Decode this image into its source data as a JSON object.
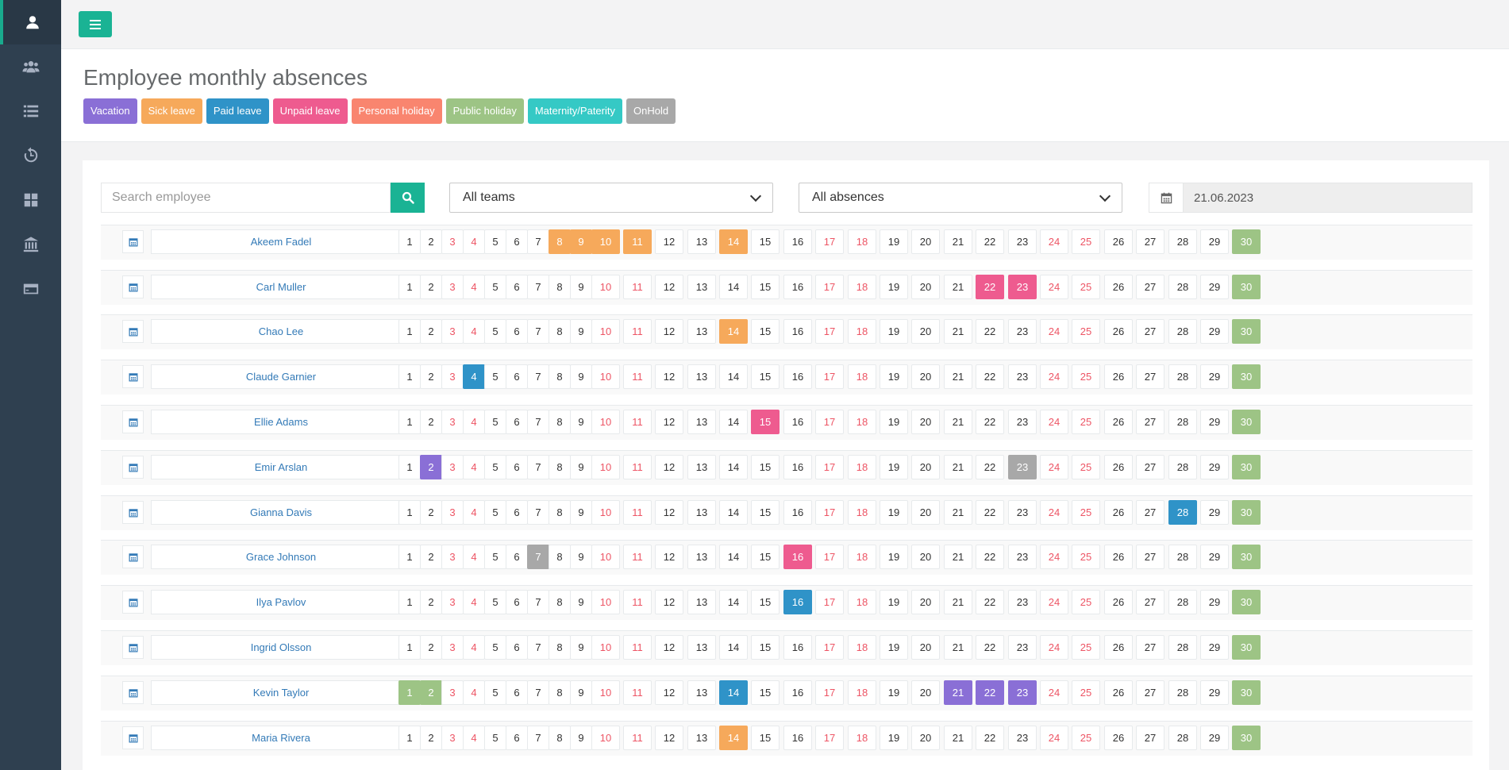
{
  "colors": {
    "vacation": "#8a6fd6",
    "sick": "#f6a95b",
    "paid": "#2f93c8",
    "unpaid": "#ee5b8f",
    "personal": "#f9856f",
    "public": "#9dc485",
    "maternity": "#35c9c5",
    "onhold": "#a8a8a8"
  },
  "sidebar": {
    "items": [
      {
        "icon": "user-icon",
        "active": true
      },
      {
        "icon": "users-icon",
        "active": false
      },
      {
        "icon": "list-icon",
        "active": false
      },
      {
        "icon": "history-icon",
        "active": false
      },
      {
        "icon": "dashboard-icon",
        "active": false
      },
      {
        "icon": "bank-icon",
        "active": false
      },
      {
        "icon": "credit-card-icon",
        "active": false
      }
    ]
  },
  "page": {
    "title": "Employee monthly absences"
  },
  "legend": [
    {
      "label": "Vacation",
      "key": "vacation"
    },
    {
      "label": "Sick leave",
      "key": "sick"
    },
    {
      "label": "Paid leave",
      "key": "paid"
    },
    {
      "label": "Unpaid leave",
      "key": "unpaid"
    },
    {
      "label": "Personal holiday",
      "key": "personal"
    },
    {
      "label": "Public holiday",
      "key": "public"
    },
    {
      "label": "Maternity/Paterity",
      "key": "maternity"
    },
    {
      "label": "OnHold",
      "key": "onhold"
    }
  ],
  "filters": {
    "search_placeholder": "Search employee",
    "team": "All teams",
    "absence": "All absences",
    "date": "21.06.2023"
  },
  "calendar": {
    "days_in_month": 30,
    "weekend_days": [
      3,
      4,
      10,
      11,
      17,
      18,
      24,
      25
    ]
  },
  "employees": [
    {
      "name": "Akeem Fadel",
      "absences": {
        "8": "sick",
        "9": "sick",
        "10": "sick",
        "11": "sick",
        "14": "sick",
        "30": "public"
      }
    },
    {
      "name": "Carl Muller",
      "absences": {
        "22": "unpaid",
        "23": "unpaid",
        "30": "public"
      }
    },
    {
      "name": "Chao Lee",
      "absences": {
        "14": "sick",
        "30": "public"
      }
    },
    {
      "name": "Claude Garnier",
      "absences": {
        "4": "paid",
        "30": "public"
      }
    },
    {
      "name": "Ellie Adams",
      "absences": {
        "15": "unpaid",
        "30": "public"
      }
    },
    {
      "name": "Emir Arslan",
      "absences": {
        "2": "vacation",
        "23": "onhold",
        "30": "public"
      }
    },
    {
      "name": "Gianna Davis",
      "absences": {
        "28": "paid",
        "30": "public"
      }
    },
    {
      "name": "Grace Johnson",
      "absences": {
        "7": "onhold",
        "16": "unpaid",
        "30": "public"
      }
    },
    {
      "name": "Ilya Pavlov",
      "absences": {
        "16": "paid",
        "30": "public"
      }
    },
    {
      "name": "Ingrid Olsson",
      "absences": {
        "30": "public"
      }
    },
    {
      "name": "Kevin Taylor",
      "absences": {
        "1": "public",
        "2": "public",
        "14": "paid",
        "21": "vacation",
        "22": "vacation",
        "23": "vacation",
        "30": "public"
      }
    },
    {
      "name": "Maria Rivera",
      "absences": {
        "14": "sick",
        "30": "public"
      }
    }
  ]
}
